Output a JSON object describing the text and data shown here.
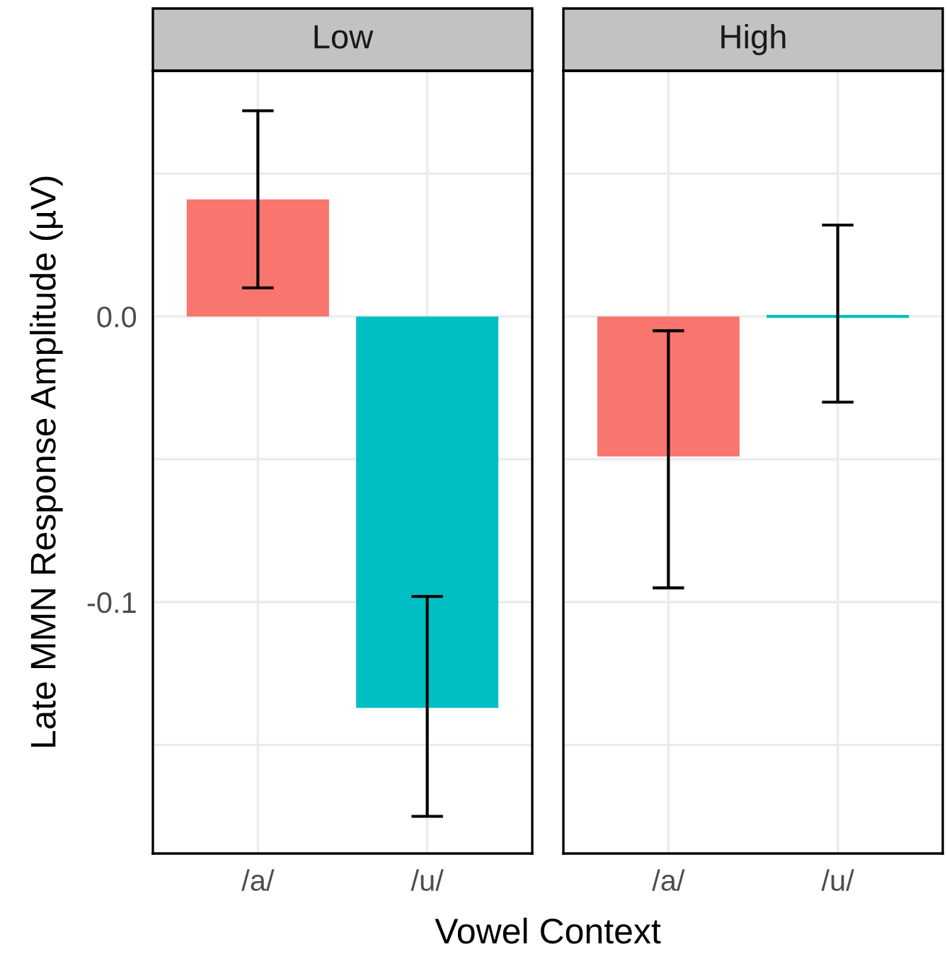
{
  "chart_data": [
    {
      "type": "bar",
      "title": "Low",
      "ylabel": "Late MMN Response Amplitude (µV)",
      "xlabel": "Vowel Context",
      "categories": [
        "/a/",
        "/u/"
      ],
      "values": [
        0.041,
        -0.137
      ],
      "colors": [
        "#f8766d",
        "#00bfc4"
      ],
      "errors": [
        [
          0.01,
          0.072
        ],
        [
          -0.175,
          -0.098
        ]
      ],
      "ylim": [
        -0.188,
        0.086
      ],
      "yticks": [
        {
          "value": -0.15,
          "label": null
        },
        {
          "value": -0.1,
          "label": "-0.1"
        },
        {
          "value": -0.05,
          "label": null
        },
        {
          "value": 0.0,
          "label": "0.0"
        },
        {
          "value": 0.05,
          "label": null
        }
      ],
      "grid": true
    },
    {
      "type": "bar",
      "title": "High",
      "categories": [
        "/a/",
        "/u/"
      ],
      "values": [
        -0.049,
        0.0
      ],
      "colors": [
        "#f8766d",
        "#00bfc4"
      ],
      "errors": [
        [
          -0.095,
          -0.005
        ],
        [
          -0.03,
          0.032
        ]
      ],
      "ylim": [
        -0.188,
        0.086
      ],
      "yticks": [
        {
          "value": -0.15,
          "label": null
        },
        {
          "value": -0.1,
          "label": null
        },
        {
          "value": -0.05,
          "label": null
        },
        {
          "value": 0.0,
          "label": null
        },
        {
          "value": 0.05,
          "label": null
        }
      ],
      "grid": true,
      "tick_labels": "x"
    }
  ]
}
